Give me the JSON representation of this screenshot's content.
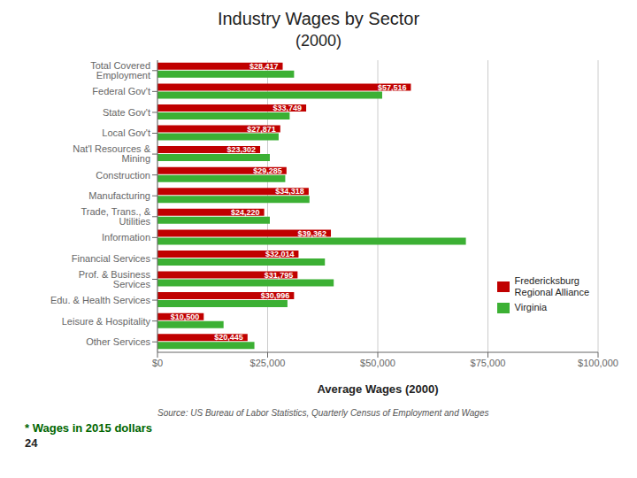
{
  "chart_data": {
    "type": "bar",
    "orientation": "horizontal",
    "title": "Industry Wages by Sector",
    "subtitle": "(2000)",
    "xlabel": "Average Wages (2000)",
    "categories": [
      "Total Covered Employment",
      "Federal Gov't",
      "State Gov't",
      "Local Gov't",
      "Nat'l Resources & Mining",
      "Construction",
      "Manufacturing",
      "Trade, Trans., & Utilities",
      "Information",
      "Financial Services",
      "Prof. & Business Services",
      "Edu. & Health Services",
      "Leisure & Hospitality",
      "Other Services"
    ],
    "series": [
      {
        "name": "Fredericksburg\nRegional Alliance",
        "color": "#C00000",
        "values": [
          28417,
          57516,
          33749,
          27871,
          23302,
          29285,
          34318,
          24220,
          39362,
          32014,
          31795,
          30996,
          10500,
          20445
        ],
        "value_labels": [
          "$28,417",
          "$57,516",
          "$33,749",
          "$27,871",
          "$23,302",
          "$29,285",
          "$34,318",
          "$24,220",
          "$39,362",
          "$32,014",
          "$31,795",
          "$30,996",
          "$10,500",
          "$20,445"
        ],
        "data_labels": true
      },
      {
        "name": "Virginia",
        "color": "#3CB034",
        "values": [
          31000,
          51000,
          30000,
          27500,
          25500,
          29000,
          34500,
          25500,
          70000,
          38000,
          40000,
          29500,
          15000,
          22000
        ]
      }
    ],
    "xlim": [
      0,
      100000
    ],
    "xticks": [
      {
        "value": 0,
        "label": "$0"
      },
      {
        "value": 25000,
        "label": "$25,000"
      },
      {
        "value": 50000,
        "label": "$50,000"
      },
      {
        "value": 75000,
        "label": "$75,000"
      },
      {
        "value": 100000,
        "label": "$100,000"
      }
    ],
    "grid": true,
    "legend": "lower right",
    "annotations": [
      "Source: US Bureau of Labor Statistics, Quarterly Census of Employment and Wages",
      "* Wages in 2015 dollars",
      "24"
    ]
  }
}
